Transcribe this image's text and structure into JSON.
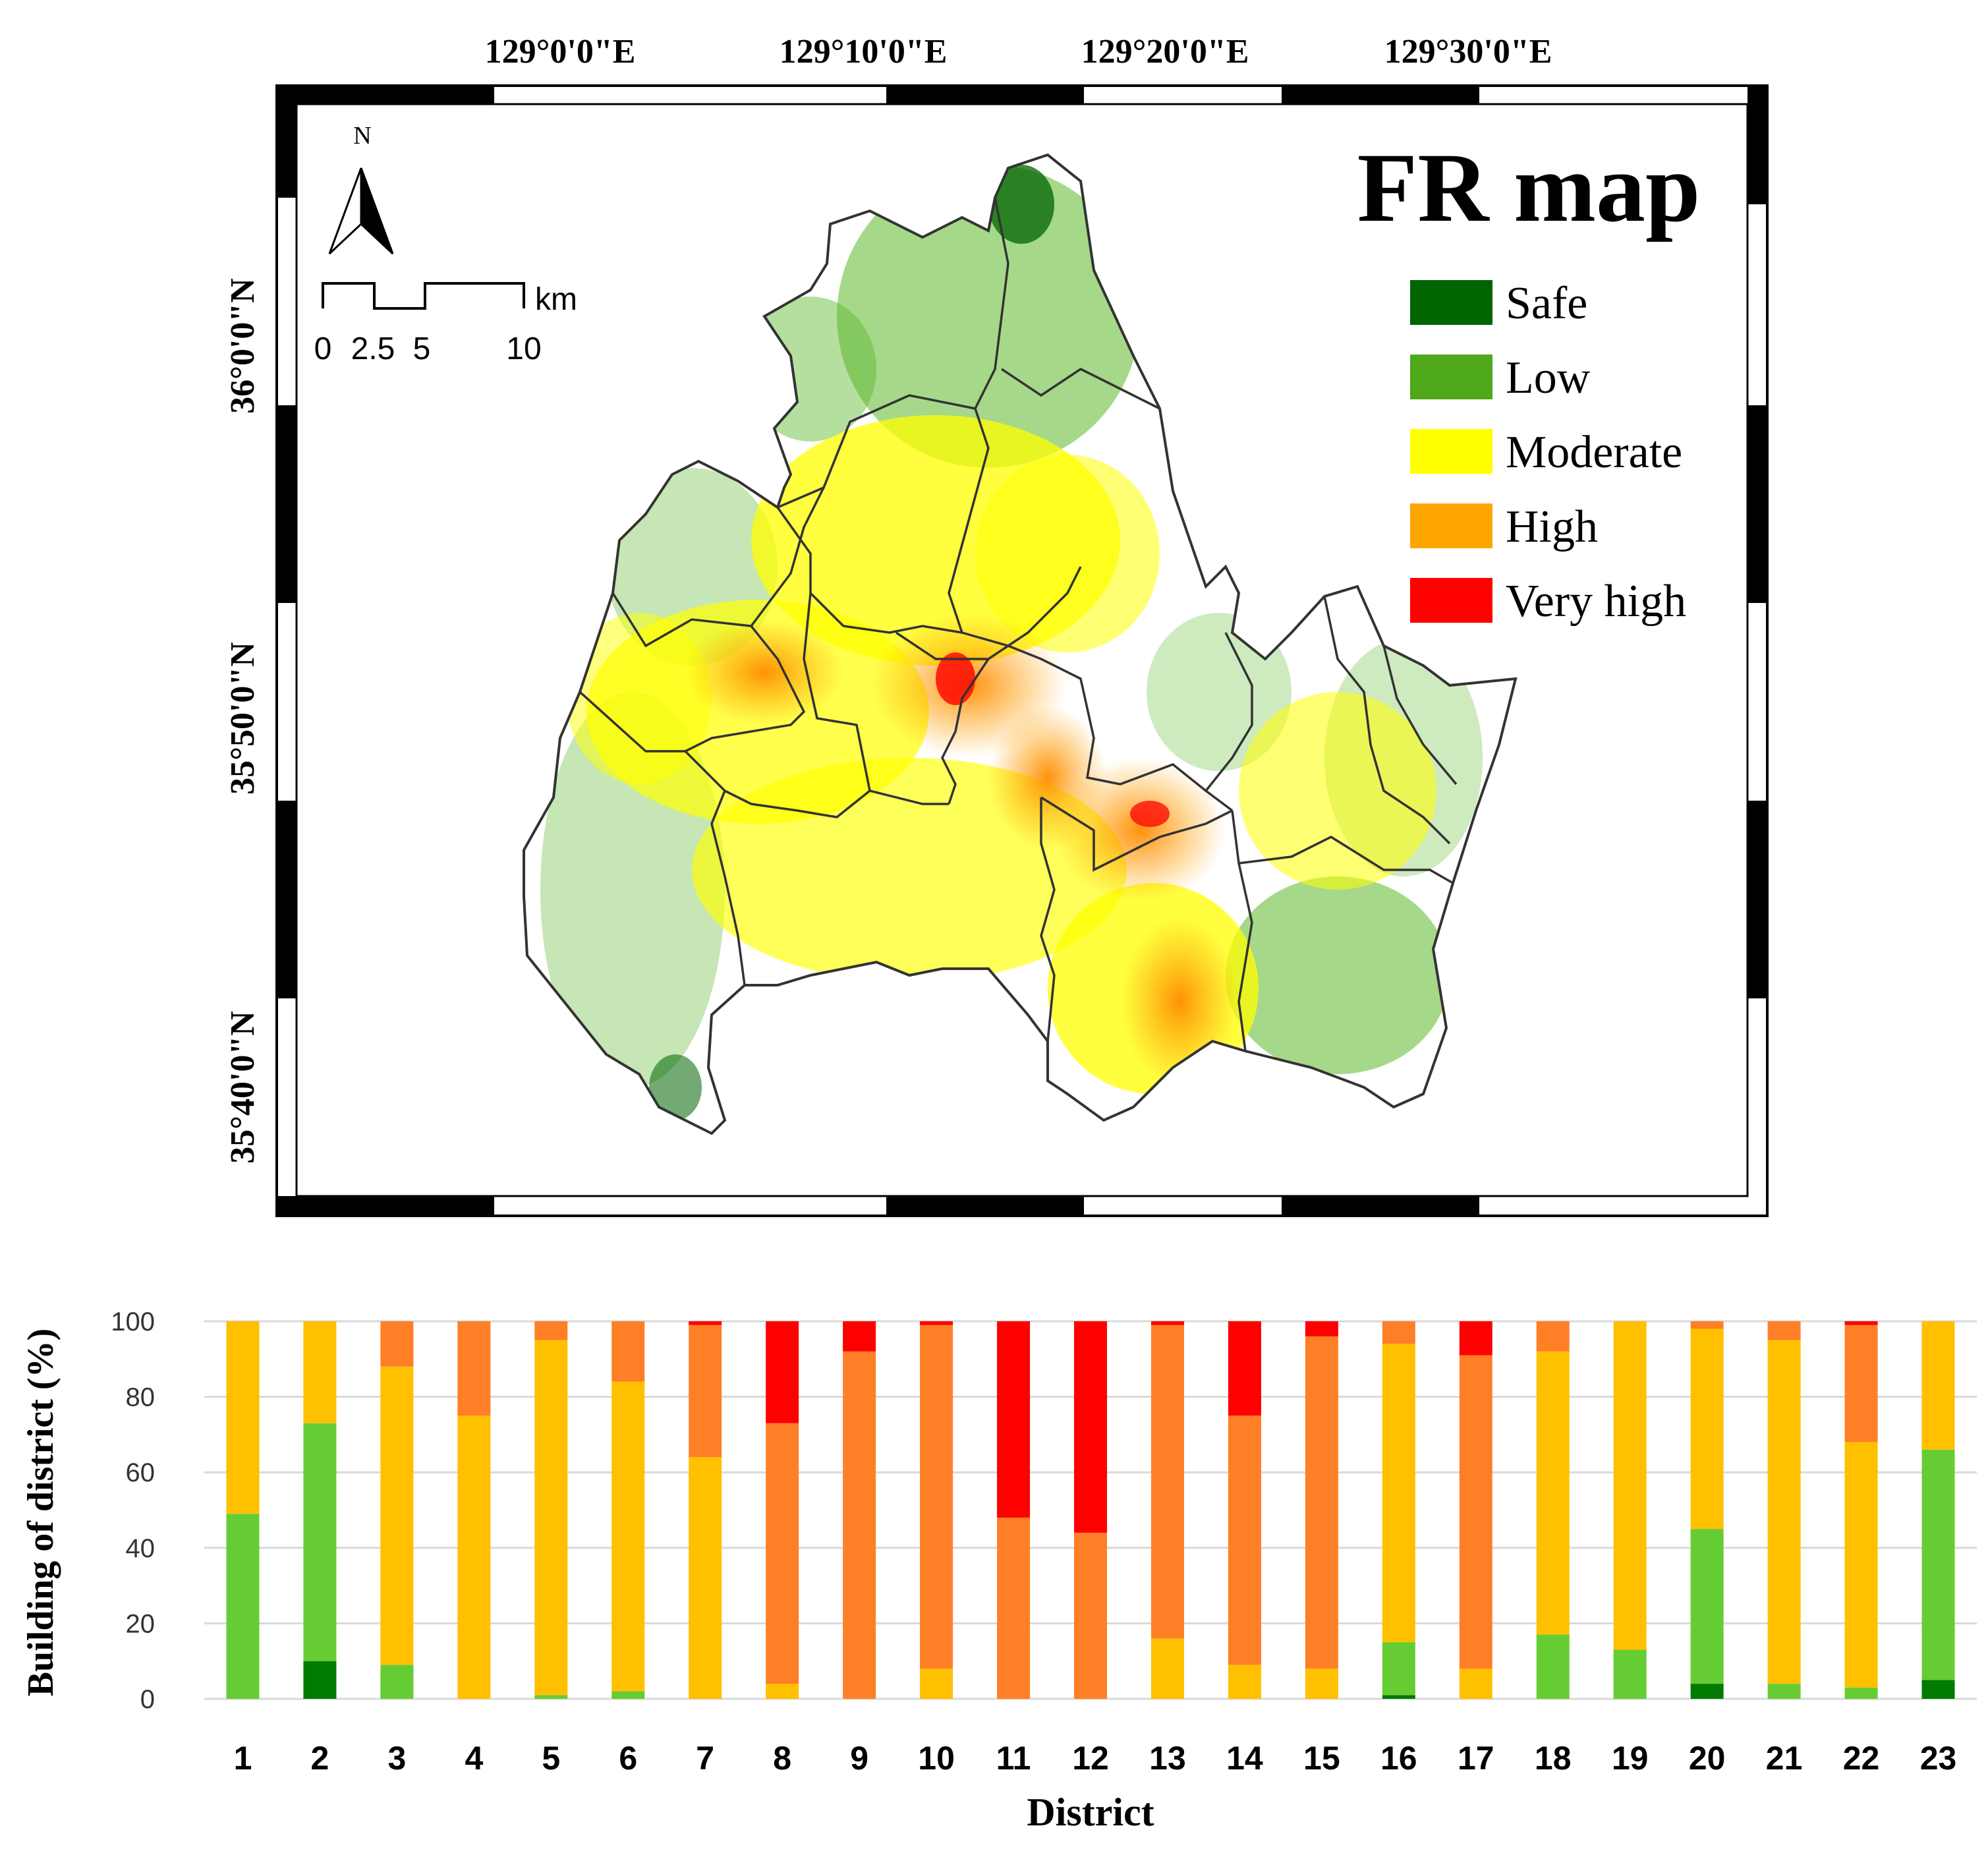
{
  "map": {
    "title": "FR map",
    "north_label": "N",
    "scale_label_unit": "km",
    "scale_ticks": [
      "0",
      "2.5",
      "5",
      "10"
    ],
    "lon_labels": [
      "129°0'0\"E",
      "129°10'0\"E",
      "129°20'0\"E",
      "129°30'0\"E"
    ],
    "lat_labels": [
      "36°0'0\"N",
      "35°50'0\"N",
      "35°40'0\"N"
    ],
    "legend": [
      {
        "label": "Safe",
        "color": "#006400"
      },
      {
        "label": "Low",
        "color": "#4ea81a"
      },
      {
        "label": "Moderate",
        "color": "#ffff00"
      },
      {
        "label": "High",
        "color": "#ffa500"
      },
      {
        "label": "Very high",
        "color": "#ff0000"
      }
    ]
  },
  "chart_data": {
    "type": "bar",
    "stacked": true,
    "xlabel": "District",
    "ylabel": "Building  of district  (%)",
    "ylim": [
      0,
      100
    ],
    "yticks": [
      "0",
      "20",
      "40",
      "60",
      "80",
      "100"
    ],
    "grid": true,
    "categories": [
      "1",
      "2",
      "3",
      "4",
      "5",
      "6",
      "7",
      "8",
      "9",
      "10",
      "11",
      "12",
      "13",
      "14",
      "15",
      "16",
      "17",
      "18",
      "19",
      "20",
      "21",
      "22",
      "23"
    ],
    "series": [
      {
        "color": "#007a00",
        "values": [
          0,
          10,
          0,
          0,
          0,
          0,
          0,
          0,
          0,
          0,
          0,
          0,
          0,
          0,
          0,
          1,
          0,
          0,
          0,
          4,
          0,
          0,
          5
        ]
      },
      {
        "color": "#66cc33",
        "values": [
          49,
          63,
          9,
          0,
          1,
          2,
          0,
          0,
          0,
          0,
          0,
          0,
          0,
          0,
          0,
          14,
          0,
          17,
          13,
          41,
          4,
          3,
          61
        ]
      },
      {
        "color": "#ffc000",
        "values": [
          51,
          27,
          79,
          75,
          94,
          82,
          64,
          4,
          0,
          8,
          0,
          0,
          16,
          9,
          8,
          79,
          8,
          75,
          87,
          53,
          91,
          65,
          34
        ]
      },
      {
        "color": "#ff7f27",
        "values": [
          0,
          0,
          12,
          25,
          5,
          16,
          35,
          69,
          92,
          91,
          48,
          44,
          83,
          66,
          88,
          6,
          83,
          8,
          0,
          2,
          5,
          31,
          0
        ]
      },
      {
        "color": "#ff0000",
        "values": [
          0,
          0,
          0,
          0,
          0,
          0,
          1,
          27,
          8,
          1,
          52,
          56,
          1,
          25,
          4,
          0,
          9,
          0,
          0,
          0,
          0,
          1,
          0
        ]
      }
    ]
  }
}
